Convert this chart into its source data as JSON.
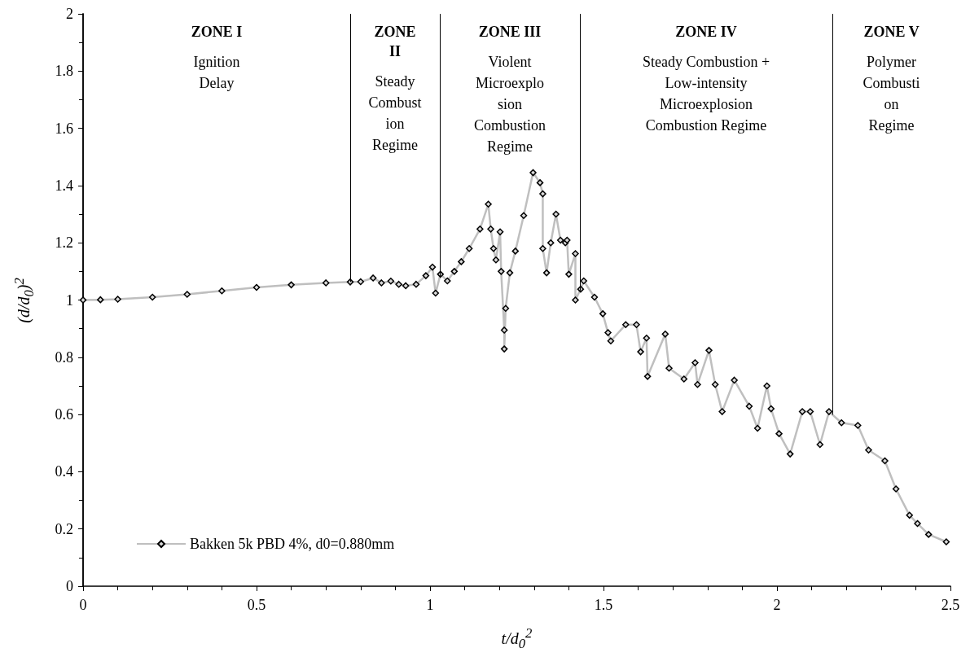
{
  "chart_data": {
    "type": "line",
    "xlabel": "t/d$_{0}$$^{2}$",
    "ylabel": "(d/d$_{0}$)$^{2}$",
    "xlim": [
      0,
      2.5
    ],
    "xticks": [
      0,
      0.5,
      1,
      1.5,
      2,
      2.5
    ],
    "ylim": [
      0,
      2
    ],
    "yticks": [
      0,
      0.2,
      0.4,
      0.6,
      0.8,
      1,
      1.2,
      1.4,
      1.6,
      1.8,
      2
    ],
    "grid": false,
    "legend": "bottom left",
    "marker": "diamond",
    "line_style": "solid",
    "series": [
      {
        "name": "Bakken 5k PBD 4%, d0=0.880mm",
        "color": "#bfbfbf",
        "x": [
          0,
          0.05,
          0.1,
          0.2,
          0.3,
          0.4,
          0.5,
          0.6,
          0.7,
          0.77,
          0.8,
          0.836,
          0.86,
          0.887,
          0.91,
          0.93,
          0.96,
          0.988,
          1.007,
          1.016,
          1.03,
          1.05,
          1.07,
          1.09,
          1.113,
          1.144,
          1.168,
          1.175,
          1.183,
          1.19,
          1.202,
          1.205,
          1.214,
          1.214,
          1.218,
          1.23,
          1.246,
          1.27,
          1.297,
          1.317,
          1.325,
          1.325,
          1.336,
          1.348,
          1.363,
          1.376,
          1.39,
          1.395,
          1.4,
          1.419,
          1.419,
          1.434,
          1.443,
          1.474,
          1.498,
          1.513,
          1.521,
          1.564,
          1.595,
          1.607,
          1.624,
          1.627,
          1.678,
          1.689,
          1.732,
          1.764,
          1.771,
          1.804,
          1.822,
          1.842,
          1.877,
          1.92,
          1.944,
          1.971,
          1.983,
          2.006,
          2.038,
          2.073,
          2.096,
          2.124,
          2.15,
          2.186,
          2.233,
          2.264,
          2.311,
          2.343,
          2.382,
          2.405,
          2.437,
          2.488
        ],
        "values": [
          1.0,
          1.001,
          1.003,
          1.01,
          1.02,
          1.032,
          1.044,
          1.053,
          1.06,
          1.063,
          1.064,
          1.077,
          1.06,
          1.066,
          1.055,
          1.05,
          1.055,
          1.085,
          1.115,
          1.024,
          1.09,
          1.067,
          1.1,
          1.134,
          1.18,
          1.248,
          1.335,
          1.248,
          1.18,
          1.14,
          1.238,
          1.1,
          0.895,
          0.829,
          0.971,
          1.095,
          1.171,
          1.295,
          1.445,
          1.41,
          1.371,
          1.18,
          1.095,
          1.2,
          1.3,
          1.209,
          1.2,
          1.209,
          1.09,
          1.162,
          1.0,
          1.038,
          1.067,
          1.01,
          0.952,
          0.886,
          0.857,
          0.914,
          0.914,
          0.819,
          0.867,
          0.733,
          0.881,
          0.762,
          0.724,
          0.781,
          0.705,
          0.824,
          0.705,
          0.61,
          0.72,
          0.629,
          0.552,
          0.7,
          0.62,
          0.533,
          0.462,
          0.61,
          0.61,
          0.495,
          0.61,
          0.571,
          0.562,
          0.476,
          0.438,
          0.34,
          0.248,
          0.219,
          0.181,
          0.155
        ]
      }
    ],
    "ref_lines": [
      {
        "axis": "x",
        "value": 0.77,
        "color": "#000000",
        "line_style": "solid"
      },
      {
        "axis": "x",
        "value": 1.028,
        "color": "#000000",
        "line_style": "solid"
      },
      {
        "axis": "x",
        "value": 1.432,
        "color": "#000000",
        "line_style": "solid"
      },
      {
        "axis": "x",
        "value": 2.16,
        "color": "#000000",
        "line_style": "solid"
      }
    ],
    "annotations": [
      "ZONE I\n\nIgnition\nDelay",
      "ZONE\nII\n\nSteady\nCombust\nion\nRegime",
      "ZONE III\n\nViolent\nMicroexplo\nsion\nCombustion\nRegime",
      "ZONE IV\n\nSteady Combustion +\nLow-intensity\nMicroexplosion\nCombustion Regime",
      "ZONE V\n\nPolymer\nCombusti\non\nRegime"
    ]
  }
}
